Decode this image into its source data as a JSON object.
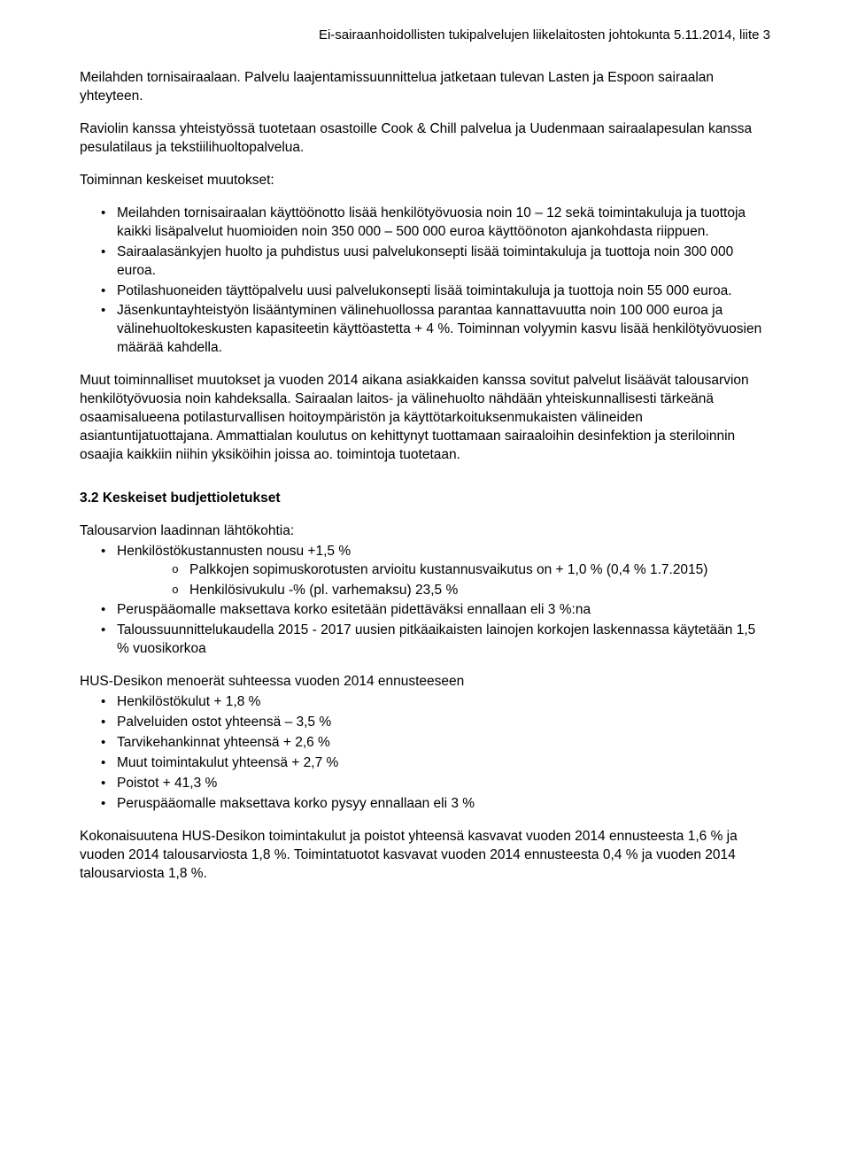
{
  "header": {
    "meta": "Ei-sairaanhoidollisten tukipalvelujen liikelaitosten johtokunta 5.11.2014, liite 3"
  },
  "intro": {
    "p1": "Meilahden tornisairaalaan. Palvelu laajentamissuunnittelua jatketaan tulevan Lasten ja Espoon sairaalan yhteyteen.",
    "p2": "Raviolin kanssa yhteistyössä tuotetaan osastoille Cook & Chill palvelua ja Uudenmaan sairaalapesulan kanssa pesulatilaus ja tekstiilihuoltopalvelua."
  },
  "changes": {
    "label": "Toiminnan keskeiset muutokset:",
    "items": [
      "Meilahden tornisairaalan käyttöönotto lisää henkilötyövuosia noin 10 – 12 sekä toimintakuluja ja tuottoja kaikki lisäpalvelut huomioiden noin 350 000 – 500 000 euroa käyttöönoton ajankohdasta riippuen.",
      "Sairaalasänkyjen huolto ja puhdistus uusi palvelukonsepti lisää toimintakuluja ja tuottoja noin 300 000 euroa.",
      "Potilashuoneiden täyttöpalvelu uusi palvelukonsepti lisää toimintakuluja ja tuottoja noin 55 000 euroa.",
      "Jäsenkuntayhteistyön lisääntyminen välinehuollossa parantaa kannattavuutta noin 100 000 euroa ja välinehuoltokeskusten kapasiteetin käyttöastetta + 4 %. Toiminnan volyymin kasvu lisää henkilötyövuosien määrää kahdella."
    ]
  },
  "p3": "Muut toiminnalliset muutokset ja vuoden 2014 aikana asiakkaiden kanssa sovitut palvelut lisäävät talousarvion henkilötyövuosia noin kahdeksalla. Sairaalan laitos- ja välinehuolto nähdään yhteiskunnallisesti tärkeänä osaamisalueena potilasturvallisen hoitoympäristön ja käyttötarkoituksenmukaisten välineiden asiantuntijatuottajana.  Ammattialan koulutus on kehittynyt tuottamaan sairaaloihin desinfektion ja steriloinnin osaajia kaikkiin niihin yksiköihin joissa ao. toimintoja tuotetaan.",
  "s32": {
    "title": "3.2  Keskeiset budjettioletukset",
    "lead": "Talousarvion laadinnan lähtökohtia:",
    "bullets": {
      "b1": "Henkilöstökustannusten nousu +1,5 %",
      "b1_sub": [
        "Palkkojen sopimuskorotusten arvioitu kustannusvaikutus on + 1,0 % (0,4 % 1.7.2015)",
        "Henkilösivukulu -% (pl. varhemaksu) 23,5 %"
      ],
      "b2": "Peruspääomalle maksettava korko esitetään pidettäväksi ennallaan eli 3 %:na",
      "b3": "Taloussuunnittelukaudella 2015 - 2017 uusien pitkäaikaisten lainojen korkojen laskennassa käytetään 1,5 % vuosikorkoa"
    },
    "sub2_label": "HUS-Desikon menoerät suhteessa vuoden 2014 ennusteeseen",
    "sub2_items": [
      "Henkilöstökulut + 1,8 %",
      "Palveluiden ostot yhteensä – 3,5 %",
      "Tarvikehankinnat yhteensä + 2,6 %",
      "Muut toimintakulut yhteensä + 2,7 %",
      "Poistot + 41,3 %",
      "Peruspääomalle maksettava korko pysyy ennallaan eli 3 %"
    ],
    "p_last": "Kokonaisuutena HUS-Desikon toimintakulut ja poistot yhteensä kasvavat vuoden 2014 ennusteesta 1,6 % ja vuoden 2014 talousarviosta 1,8 %. Toimintatuotot kasvavat vuoden 2014 ennusteesta 0,4 % ja vuoden 2014 talousarviosta 1,8 %."
  }
}
